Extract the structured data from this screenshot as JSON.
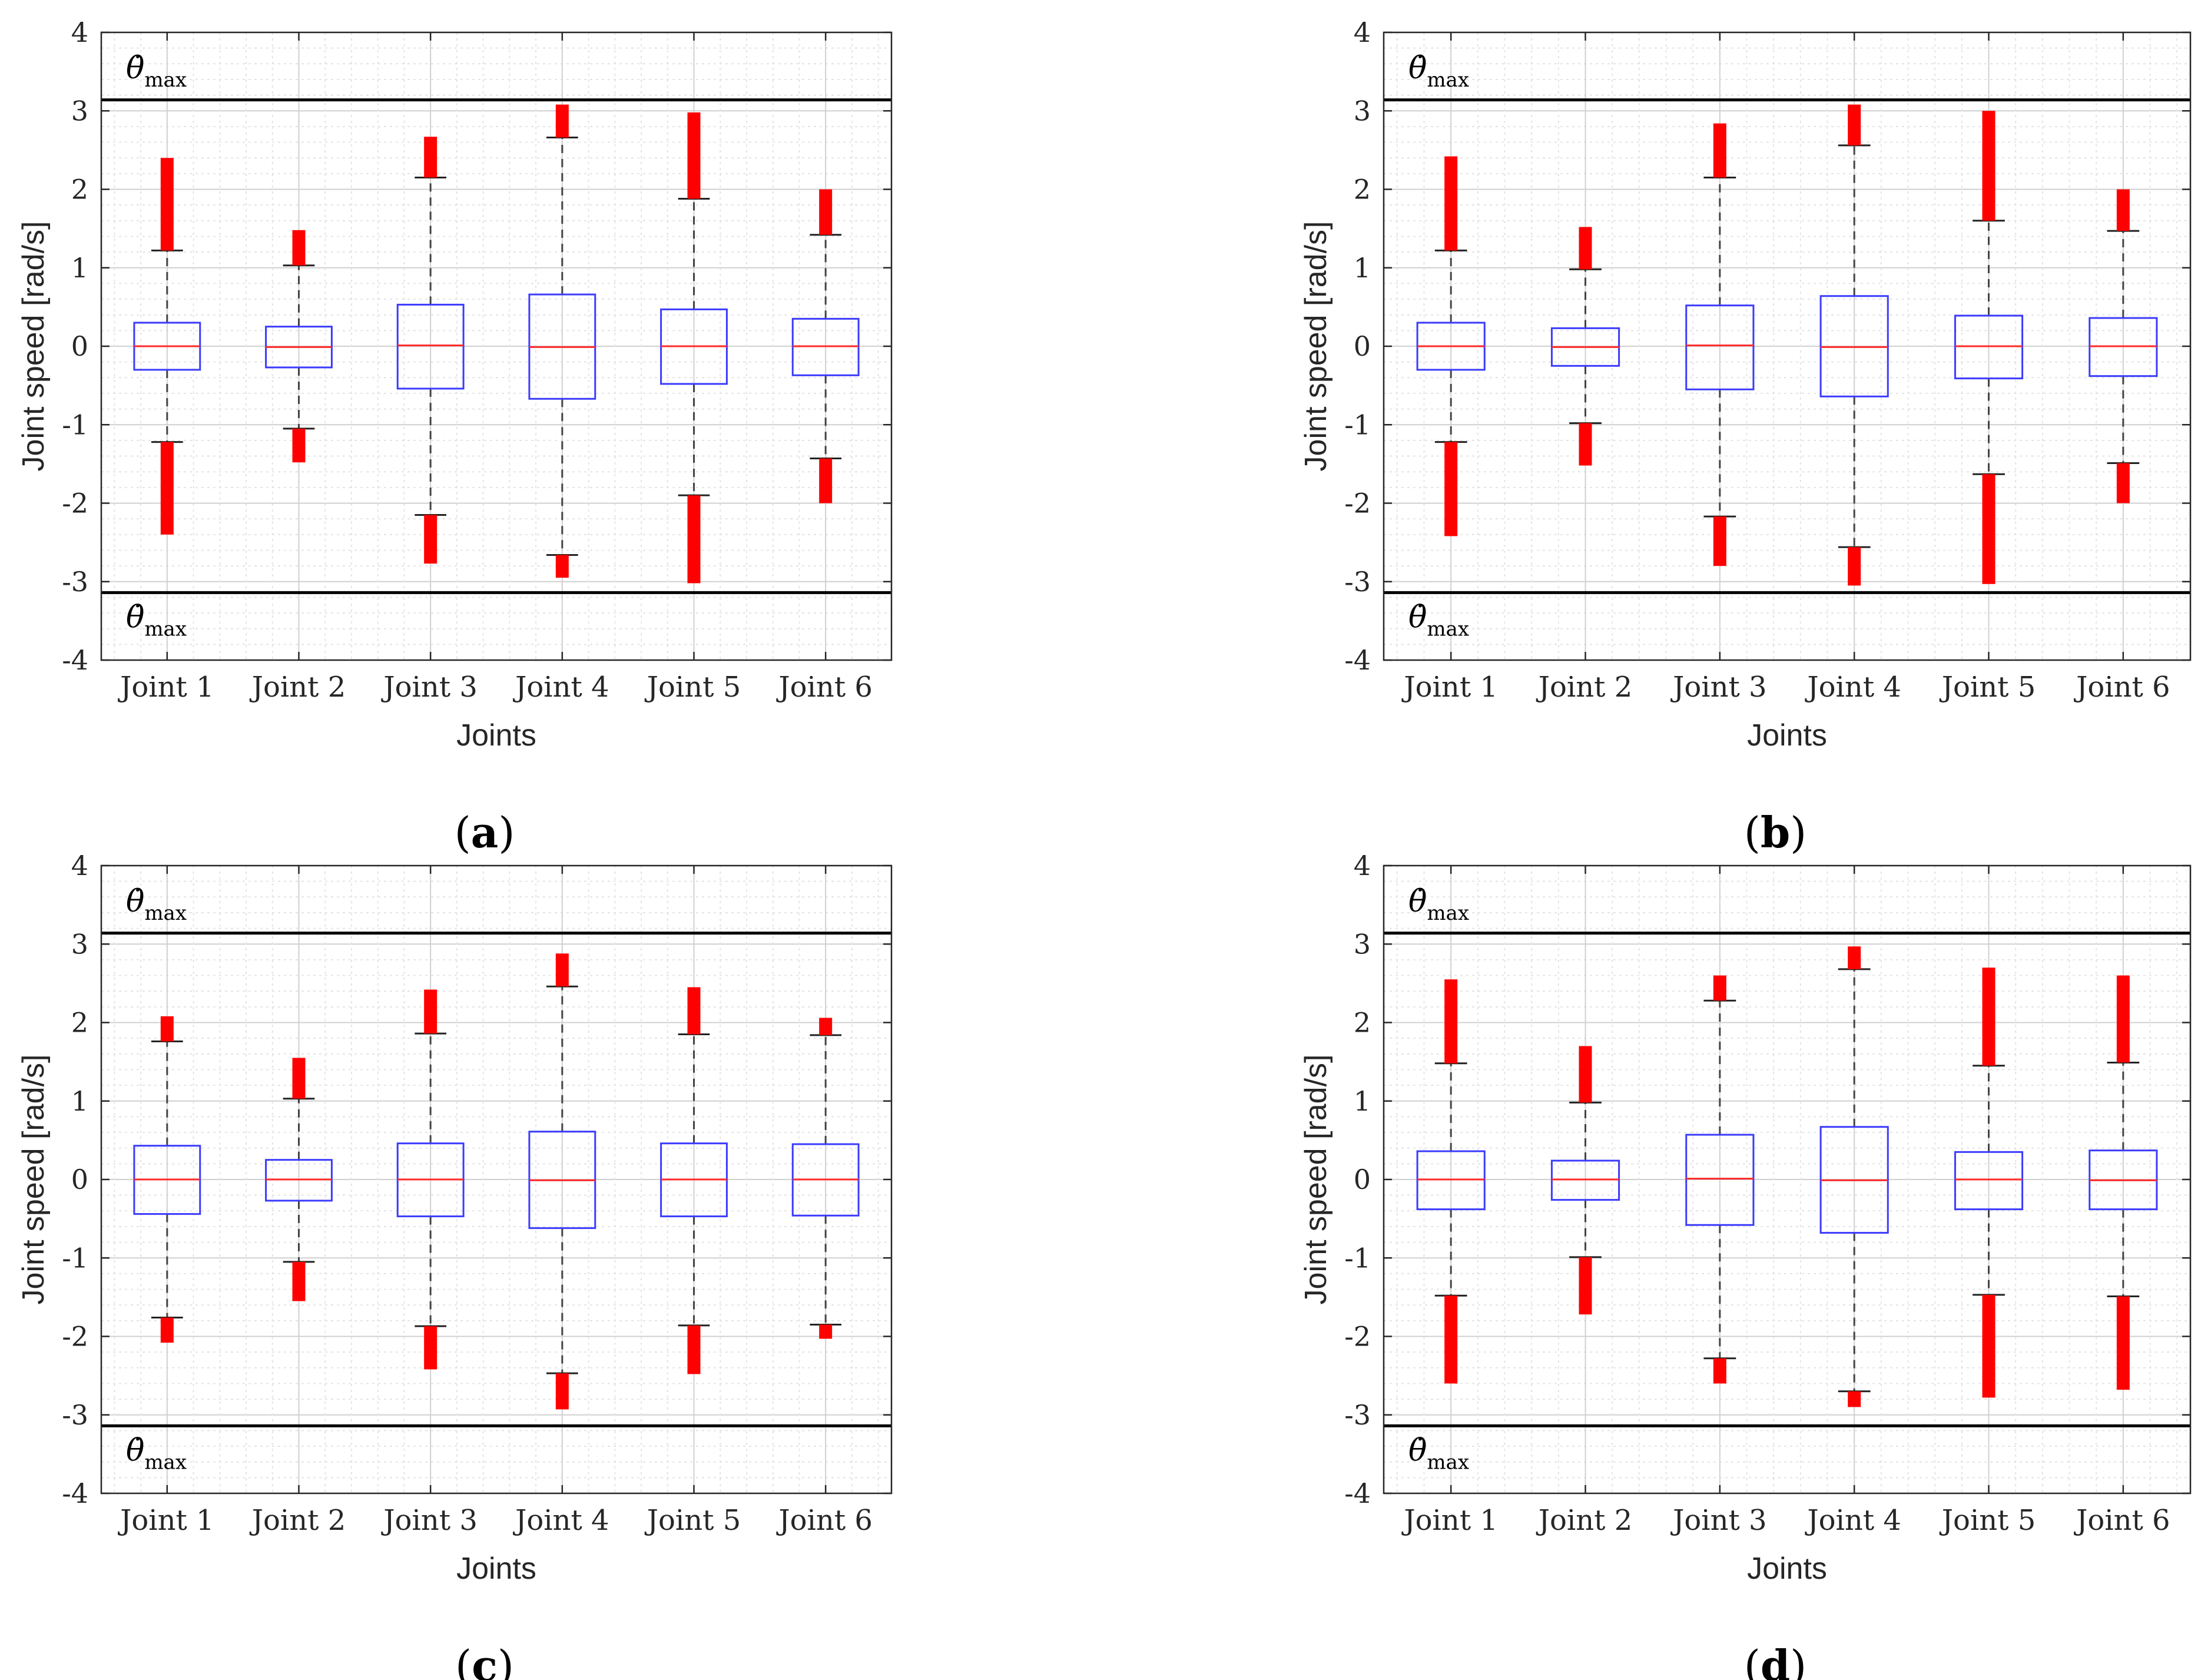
{
  "colors": {
    "box": "#3b3bff",
    "median": "#ff2a2a",
    "outlier": "#ff0000",
    "whisker": "#444444",
    "limit": "#000000",
    "grid": "#d9d9d9"
  },
  "limit_label": {
    "symbol": "θ̇",
    "sub": "max"
  },
  "chart_data": [
    {
      "type": "box",
      "panel": "a",
      "label_prefix": "(",
      "label_letter": "a",
      "label_suffix": ")",
      "xlabel": "Joints",
      "ylabel": "Joint speed [rad/s]",
      "ylim": [
        -4,
        4
      ],
      "yticks": [
        "4",
        "3",
        "2",
        "1",
        "0",
        "-1",
        "-2",
        "-3",
        "-4"
      ],
      "limit": 3.14,
      "categories": [
        "Joint 1",
        "Joint 2",
        "Joint 3",
        "Joint 4",
        "Joint 5",
        "Joint 6"
      ],
      "boxes": [
        {
          "q1": -0.3,
          "median": 0.0,
          "q3": 0.3,
          "wlo": -1.22,
          "whi": 1.22,
          "olo": [
            -2.4,
            -1.22
          ],
          "ohi": [
            1.22,
            2.4
          ]
        },
        {
          "q1": -0.27,
          "median": -0.01,
          "q3": 0.25,
          "wlo": -1.05,
          "whi": 1.03,
          "olo": [
            -1.48,
            -1.05
          ],
          "ohi": [
            1.03,
            1.48
          ]
        },
        {
          "q1": -0.54,
          "median": 0.01,
          "q3": 0.53,
          "wlo": -2.15,
          "whi": 2.15,
          "olo": [
            -2.77,
            -2.15
          ],
          "ohi": [
            2.15,
            2.67
          ]
        },
        {
          "q1": -0.67,
          "median": -0.01,
          "q3": 0.66,
          "wlo": -2.66,
          "whi": 2.66,
          "olo": [
            -2.95,
            -2.66
          ],
          "ohi": [
            2.66,
            3.08
          ]
        },
        {
          "q1": -0.48,
          "median": 0.0,
          "q3": 0.47,
          "wlo": -1.9,
          "whi": 1.88,
          "olo": [
            -3.02,
            -1.9
          ],
          "ohi": [
            1.88,
            2.98
          ]
        },
        {
          "q1": -0.37,
          "median": 0.0,
          "q3": 0.35,
          "wlo": -1.43,
          "whi": 1.42,
          "olo": [
            -2.0,
            -1.43
          ],
          "ohi": [
            1.42,
            2.0
          ]
        }
      ]
    },
    {
      "type": "box",
      "panel": "b",
      "label_prefix": "(",
      "label_letter": "b",
      "label_suffix": ")",
      "xlabel": "Joints",
      "ylabel": "Joint speed [rad/s]",
      "ylim": [
        -4,
        4
      ],
      "yticks": [
        "4",
        "3",
        "2",
        "1",
        "0",
        "-1",
        "-2",
        "-3",
        "-4"
      ],
      "limit": 3.14,
      "categories": [
        "Joint 1",
        "Joint 2",
        "Joint 3",
        "Joint 4",
        "Joint 5",
        "Joint 6"
      ],
      "boxes": [
        {
          "q1": -0.3,
          "median": 0.0,
          "q3": 0.3,
          "wlo": -1.22,
          "whi": 1.22,
          "olo": [
            -2.42,
            -1.22
          ],
          "ohi": [
            1.22,
            2.42
          ]
        },
        {
          "q1": -0.25,
          "median": -0.01,
          "q3": 0.23,
          "wlo": -0.98,
          "whi": 0.98,
          "olo": [
            -1.52,
            -0.98
          ],
          "ohi": [
            0.98,
            1.52
          ]
        },
        {
          "q1": -0.55,
          "median": 0.01,
          "q3": 0.52,
          "wlo": -2.17,
          "whi": 2.15,
          "olo": [
            -2.8,
            -2.17
          ],
          "ohi": [
            2.15,
            2.84
          ]
        },
        {
          "q1": -0.64,
          "median": -0.01,
          "q3": 0.64,
          "wlo": -2.56,
          "whi": 2.56,
          "olo": [
            -3.05,
            -2.56
          ],
          "ohi": [
            2.56,
            3.08
          ]
        },
        {
          "q1": -0.41,
          "median": 0.0,
          "q3": 0.39,
          "wlo": -1.63,
          "whi": 1.6,
          "olo": [
            -3.03,
            -1.63
          ],
          "ohi": [
            1.6,
            3.0
          ]
        },
        {
          "q1": -0.38,
          "median": 0.0,
          "q3": 0.36,
          "wlo": -1.49,
          "whi": 1.47,
          "olo": [
            -2.0,
            -1.49
          ],
          "ohi": [
            1.47,
            2.0
          ]
        }
      ]
    },
    {
      "type": "box",
      "panel": "c",
      "label_prefix": "(",
      "label_letter": "c",
      "label_suffix": ")",
      "xlabel": "Joints",
      "ylabel": "Joint speed [rad/s]",
      "ylim": [
        -4,
        4
      ],
      "yticks": [
        "4",
        "3",
        "2",
        "1",
        "0",
        "-1",
        "-2",
        "-3",
        "-4"
      ],
      "limit": 3.14,
      "categories": [
        "Joint 1",
        "Joint 2",
        "Joint 3",
        "Joint 4",
        "Joint 5",
        "Joint 6"
      ],
      "boxes": [
        {
          "q1": -0.44,
          "median": 0.0,
          "q3": 0.43,
          "wlo": -1.76,
          "whi": 1.76,
          "olo": [
            -2.08,
            -1.76
          ],
          "ohi": [
            1.76,
            2.08
          ]
        },
        {
          "q1": -0.27,
          "median": 0.0,
          "q3": 0.25,
          "wlo": -1.05,
          "whi": 1.03,
          "olo": [
            -1.55,
            -1.05
          ],
          "ohi": [
            1.03,
            1.55
          ]
        },
        {
          "q1": -0.47,
          "median": 0.0,
          "q3": 0.46,
          "wlo": -1.87,
          "whi": 1.86,
          "olo": [
            -2.42,
            -1.87
          ],
          "ohi": [
            1.86,
            2.42
          ]
        },
        {
          "q1": -0.62,
          "median": -0.01,
          "q3": 0.61,
          "wlo": -2.47,
          "whi": 2.46,
          "olo": [
            -2.93,
            -2.47
          ],
          "ohi": [
            2.46,
            2.88
          ]
        },
        {
          "q1": -0.47,
          "median": 0.0,
          "q3": 0.46,
          "wlo": -1.86,
          "whi": 1.85,
          "olo": [
            -2.48,
            -1.86
          ],
          "ohi": [
            1.85,
            2.45
          ]
        },
        {
          "q1": -0.46,
          "median": 0.0,
          "q3": 0.45,
          "wlo": -1.85,
          "whi": 1.84,
          "olo": [
            -2.03,
            -1.85
          ],
          "ohi": [
            1.84,
            2.06
          ]
        }
      ]
    },
    {
      "type": "box",
      "panel": "d",
      "label_prefix": "(",
      "label_letter": "d",
      "label_suffix": ")",
      "xlabel": "Joints",
      "ylabel": "Joint speed [rad/s]",
      "ylim": [
        -4,
        4
      ],
      "yticks": [
        "4",
        "3",
        "2",
        "1",
        "0",
        "-1",
        "-2",
        "-3",
        "-4"
      ],
      "limit": 3.14,
      "categories": [
        "Joint 1",
        "Joint 2",
        "Joint 3",
        "Joint 4",
        "Joint 5",
        "Joint 6"
      ],
      "boxes": [
        {
          "q1": -0.38,
          "median": 0.0,
          "q3": 0.36,
          "wlo": -1.48,
          "whi": 1.48,
          "olo": [
            -2.6,
            -1.48
          ],
          "ohi": [
            1.48,
            2.55
          ]
        },
        {
          "q1": -0.26,
          "median": 0.0,
          "q3": 0.24,
          "wlo": -0.99,
          "whi": 0.98,
          "olo": [
            -1.72,
            -0.99
          ],
          "ohi": [
            0.98,
            1.7
          ]
        },
        {
          "q1": -0.58,
          "median": 0.01,
          "q3": 0.57,
          "wlo": -2.28,
          "whi": 2.28,
          "olo": [
            -2.6,
            -2.28
          ],
          "ohi": [
            2.28,
            2.6
          ]
        },
        {
          "q1": -0.68,
          "median": -0.01,
          "q3": 0.67,
          "wlo": -2.7,
          "whi": 2.68,
          "olo": [
            -2.9,
            -2.7
          ],
          "ohi": [
            2.68,
            2.97
          ]
        },
        {
          "q1": -0.38,
          "median": 0.0,
          "q3": 0.35,
          "wlo": -1.47,
          "whi": 1.45,
          "olo": [
            -2.78,
            -1.47
          ],
          "ohi": [
            1.45,
            2.7
          ]
        },
        {
          "q1": -0.38,
          "median": -0.01,
          "q3": 0.37,
          "wlo": -1.49,
          "whi": 1.49,
          "olo": [
            -2.68,
            -1.49
          ],
          "ohi": [
            1.49,
            2.6
          ]
        }
      ]
    }
  ]
}
